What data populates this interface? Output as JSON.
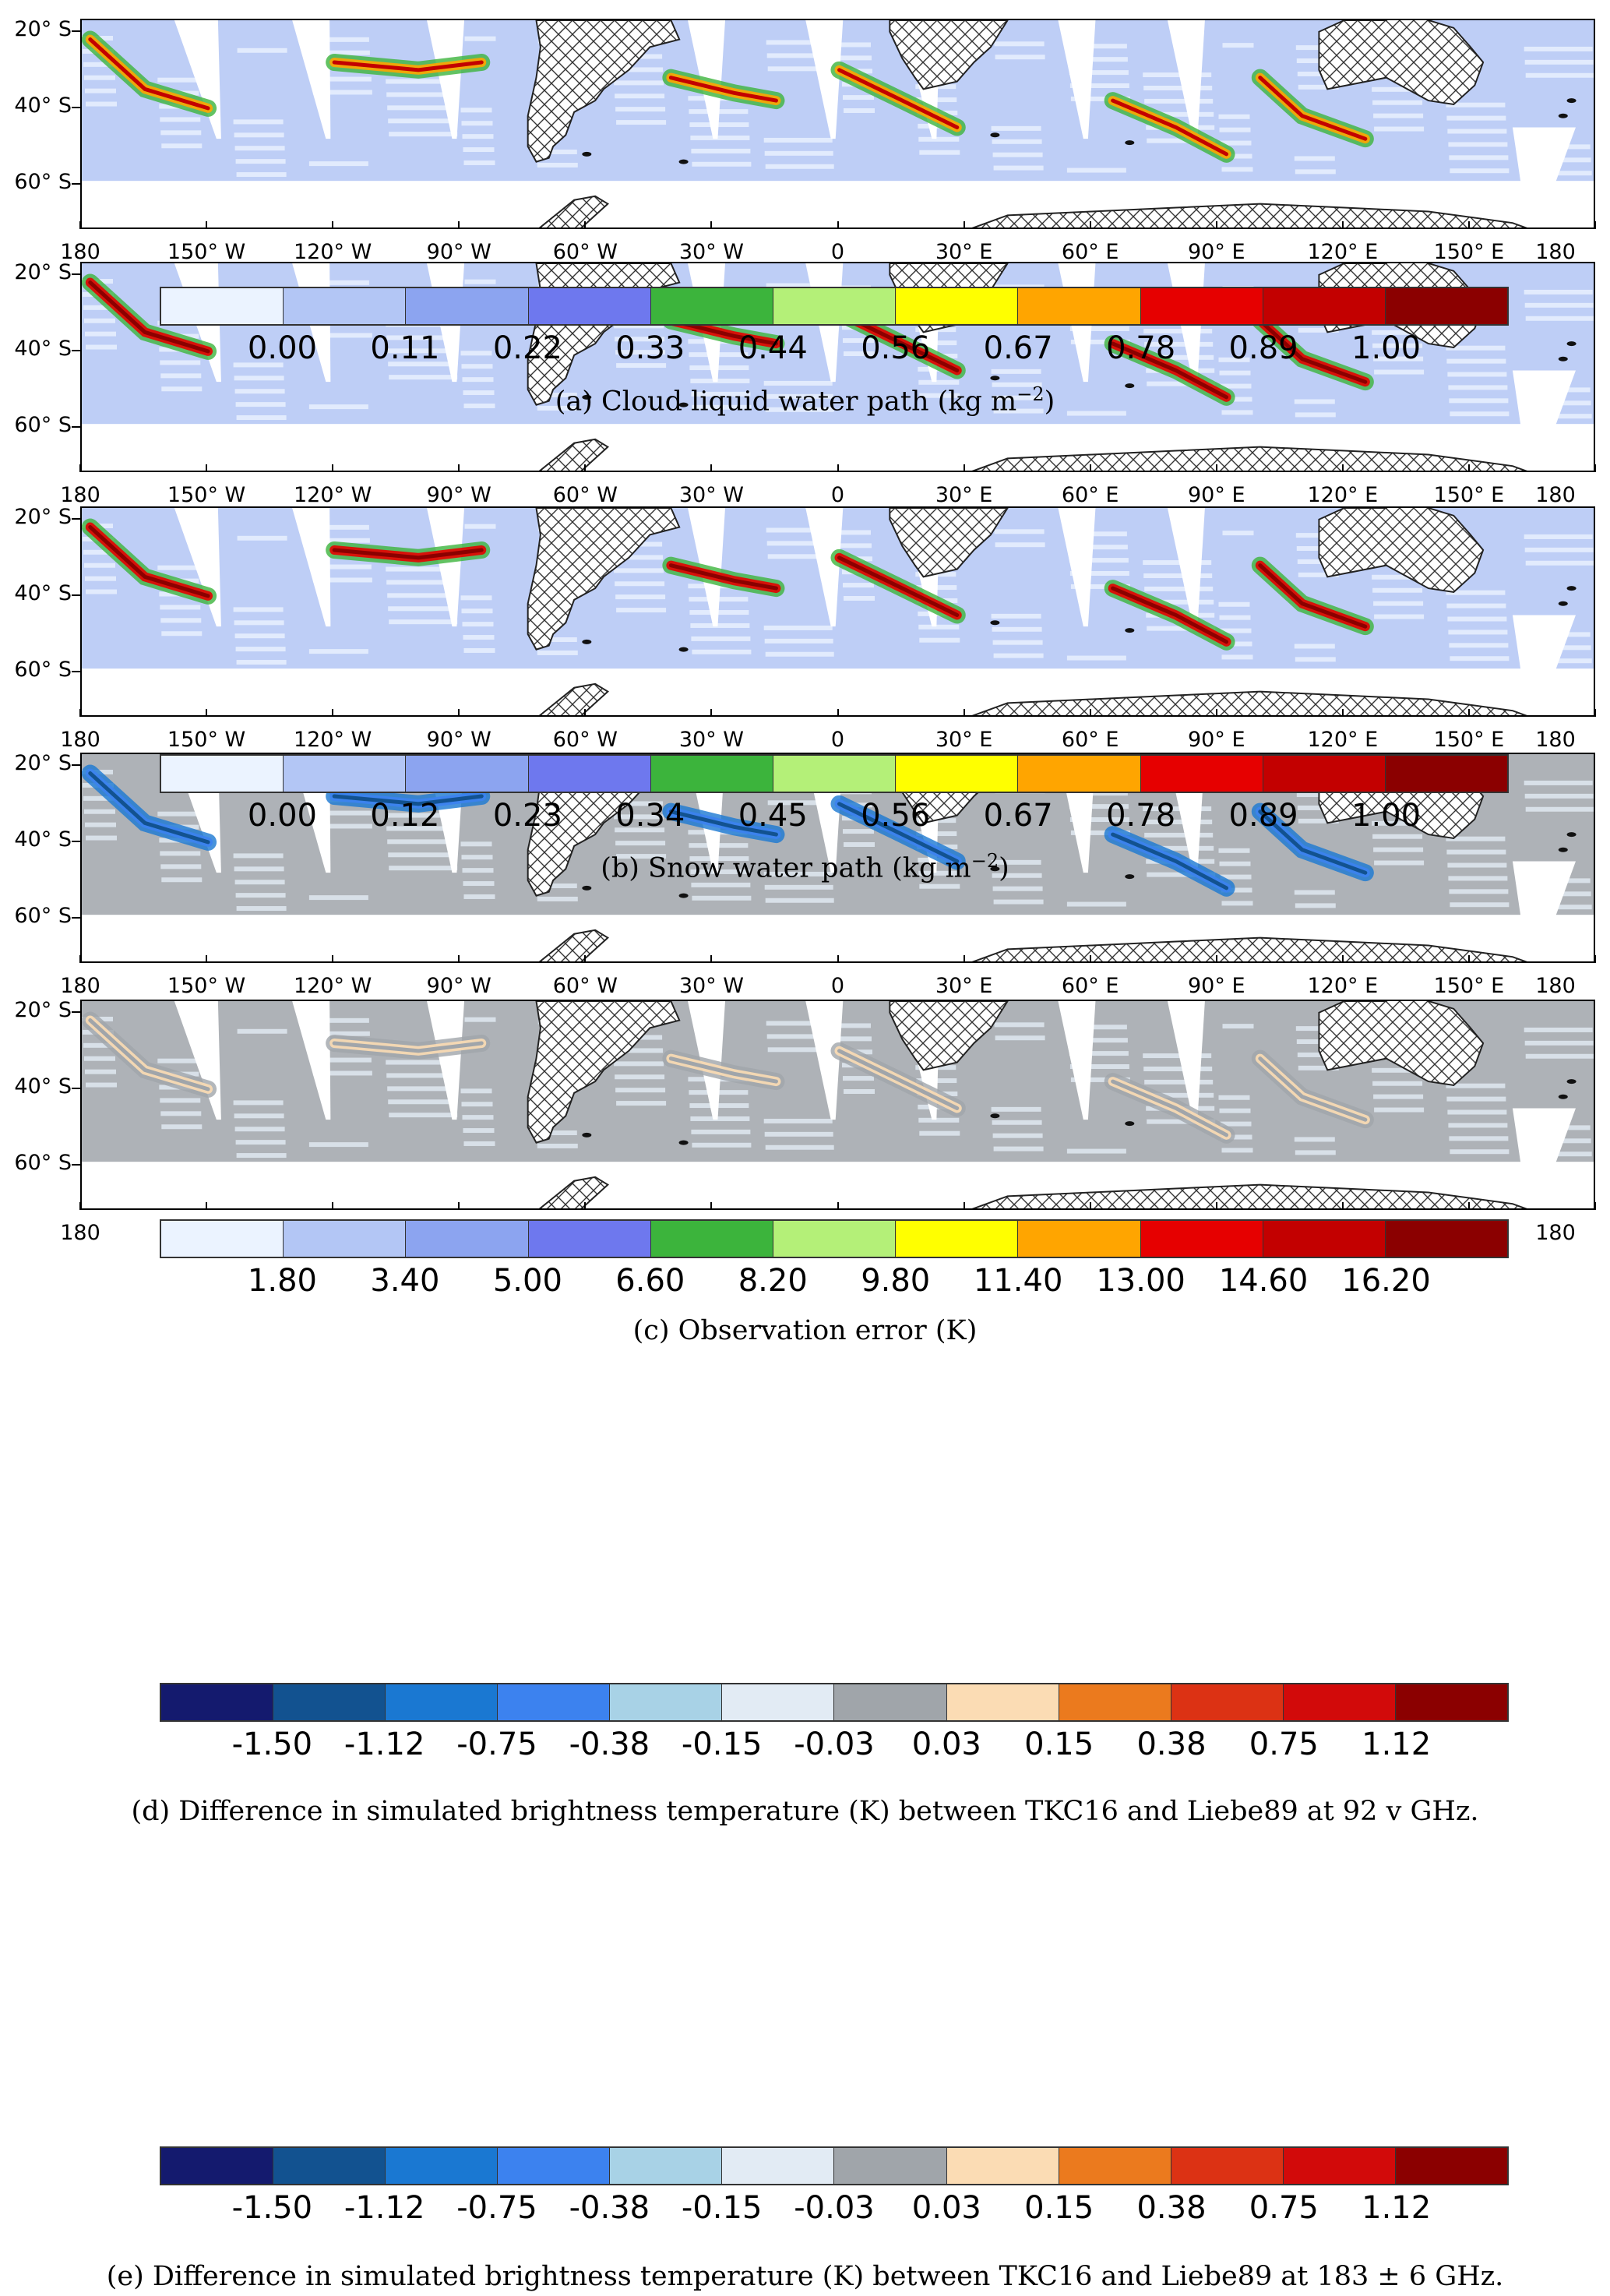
{
  "y_ticks": [
    "20° S",
    "40° S",
    "60° S"
  ],
  "x_ticks": [
    "180",
    "150° W",
    "120° W",
    "90° W",
    "60° W",
    "30° W",
    "0",
    "30° E",
    "60° E",
    "90° E",
    "120° E",
    "150° E",
    "180"
  ],
  "panels": [
    {
      "id": "a",
      "caption": "(a) Cloud liquid water path (kg m",
      "caption_sup": "−2",
      "caption_tail": ")",
      "colors": [
        "#ebf3ff",
        "#b3c6f5",
        "#8ca4f0",
        "#6e78ee",
        "#3cb43c",
        "#b4f078",
        "#ffff00",
        "#ffa500",
        "#e60000",
        "#c30000",
        "#8b0000"
      ],
      "labels": [
        "0.00",
        "0.11",
        "0.22",
        "0.33",
        "0.44",
        "0.56",
        "0.67",
        "0.78",
        "0.89",
        "1.00"
      ]
    },
    {
      "id": "b",
      "caption": "(b) Snow water path (kg m",
      "caption_sup": "−2",
      "caption_tail": ")",
      "colors": [
        "#ebf3ff",
        "#b3c6f5",
        "#8ca4f0",
        "#6e78ee",
        "#3cb43c",
        "#b4f078",
        "#ffff00",
        "#ffa500",
        "#e60000",
        "#c30000",
        "#8b0000"
      ],
      "labels": [
        "0.00",
        "0.12",
        "0.23",
        "0.34",
        "0.45",
        "0.56",
        "0.67",
        "0.78",
        "0.89",
        "1.00"
      ]
    },
    {
      "id": "c",
      "caption": "(c) Observation error (K)",
      "caption_sup": "",
      "caption_tail": "",
      "colors": [
        "#ebf3ff",
        "#b3c6f5",
        "#8ca4f0",
        "#6e78ee",
        "#3cb43c",
        "#b4f078",
        "#ffff00",
        "#ffa500",
        "#e60000",
        "#c30000",
        "#8b0000"
      ],
      "labels": [
        "1.80",
        "3.40",
        "5.00",
        "6.60",
        "8.20",
        "9.80",
        "11.40",
        "13.00",
        "14.60",
        "16.20"
      ]
    },
    {
      "id": "d",
      "caption": "(d) Difference in simulated brightness temperature (K) between TKC16 and Liebe89 at 92 v GHz.",
      "caption_sup": "",
      "caption_tail": "",
      "colors": [
        "#141a6e",
        "#125290",
        "#1a78d2",
        "#3c82ef",
        "#a8d2e6",
        "#e2ebf4",
        "#a0a5aa",
        "#fbdcb4",
        "#eb7a1e",
        "#dc3214",
        "#d20a0a",
        "#8b0000"
      ],
      "labels": [
        "-1.50",
        "-1.12",
        "-0.75",
        "-0.38",
        "-0.15",
        "-0.03",
        "0.03",
        "0.15",
        "0.38",
        "0.75",
        "1.12"
      ]
    },
    {
      "id": "e",
      "caption": "(e) Difference in simulated brightness temperature (K) between TKC16 and Liebe89 at 183 ± 6 GHz.",
      "caption_sup": "",
      "caption_tail": "",
      "colors": [
        "#141a6e",
        "#125290",
        "#1a78d2",
        "#3c82ef",
        "#a8d2e6",
        "#e2ebf4",
        "#a0a5aa",
        "#fbdcb4",
        "#eb7a1e",
        "#dc3214",
        "#d20a0a",
        "#8b0000"
      ],
      "labels": [
        "-1.50",
        "-1.12",
        "-0.75",
        "-0.38",
        "-0.15",
        "-0.03",
        "0.03",
        "0.15",
        "0.38",
        "0.75",
        "1.12"
      ]
    }
  ]
}
